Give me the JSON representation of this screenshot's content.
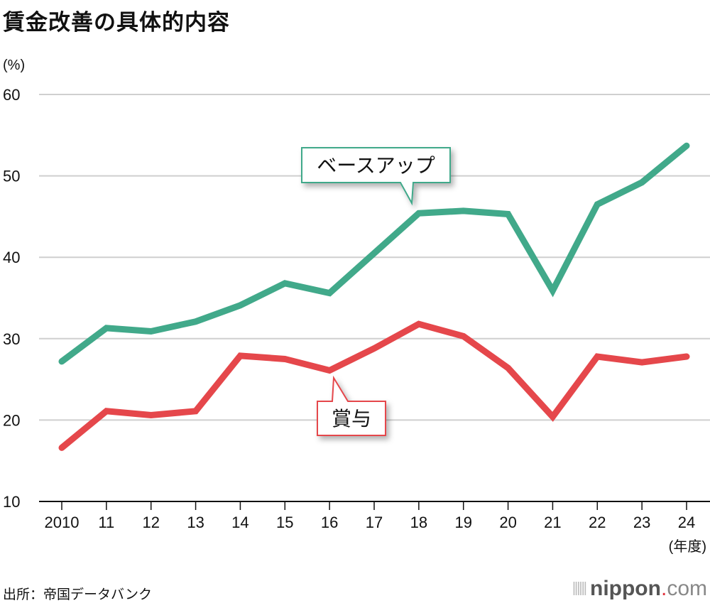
{
  "title": "賃金改善の具体的内容",
  "source": "出所：帝国データバンク",
  "logo": {
    "text": "nippon",
    "dot": ".",
    "suffix": "com"
  },
  "chart_data": {
    "type": "line",
    "title": "賃金改善の具体的内容",
    "ylabel": "(%)",
    "xlabel": "(年度)",
    "ylim": [
      10,
      60
    ],
    "yticks": [
      10,
      20,
      30,
      40,
      50,
      60
    ],
    "grid": true,
    "categories": [
      "2010",
      "11",
      "12",
      "13",
      "14",
      "15",
      "16",
      "17",
      "18",
      "19",
      "20",
      "21",
      "22",
      "23",
      "24"
    ],
    "series": [
      {
        "name": "ベースアップ",
        "color": "#41a98a",
        "values": [
          27.2,
          31.3,
          30.9,
          32.1,
          34.1,
          36.8,
          35.6,
          40.5,
          45.4,
          45.7,
          45.3,
          35.9,
          46.5,
          49.2,
          53.7
        ]
      },
      {
        "name": "賞与",
        "color": "#e5474b",
        "values": [
          16.6,
          21.1,
          20.6,
          21.1,
          27.9,
          27.5,
          26.1,
          28.8,
          31.8,
          30.3,
          26.4,
          20.4,
          27.8,
          27.1,
          27.8
        ]
      }
    ]
  }
}
